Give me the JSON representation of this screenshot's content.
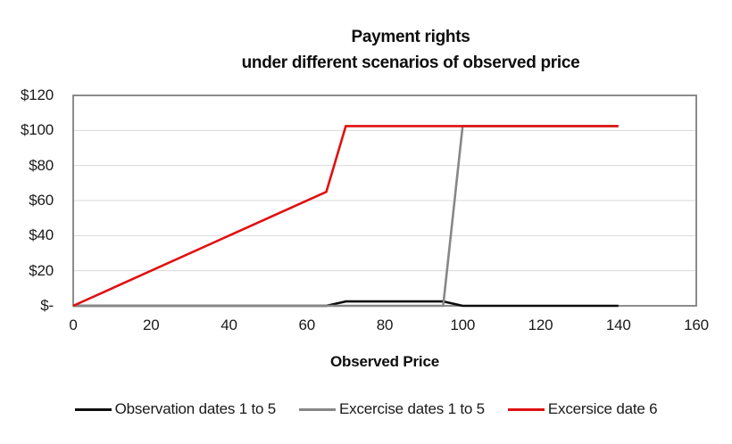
{
  "title": {
    "line1": "Payment rights",
    "line2": "under different scenarios of observed price"
  },
  "axes": {
    "x_label": "Observed Price",
    "y_ticks": [
      "$120",
      "$100",
      "$80",
      "$60",
      "$40",
      "$20",
      "$-"
    ],
    "x_ticks": [
      "0",
      "20",
      "40",
      "60",
      "80",
      "100",
      "120",
      "140",
      "160"
    ]
  },
  "legend": [
    {
      "label": "Observation dates 1 to 5",
      "color": "#0d0d0d"
    },
    {
      "label": "Excercise dates 1 to 5",
      "color": "#878787"
    },
    {
      "label": "Excersice date 6",
      "color": "#e01010"
    }
  ],
  "colors": {
    "plot_border": "#808080",
    "gridline": "#d9d9d9",
    "series_black": "#0d0d0d",
    "series_gray": "#878787",
    "series_red": "#e01010"
  },
  "chart_data": {
    "type": "line",
    "title": "Payment rights under different scenarios of observed price",
    "xlabel": "Observed Price",
    "ylabel": "",
    "xlim": [
      0,
      160
    ],
    "ylim": [
      0,
      120
    ],
    "x_tick_step": 20,
    "y_tick_step": 20,
    "grid": "horizontal",
    "legend_position": "bottom",
    "series": [
      {
        "name": "Observation dates 1 to 5",
        "color": "#0d0d0d",
        "points": [
          [
            0,
            0
          ],
          [
            65,
            0
          ],
          [
            70,
            2.5
          ],
          [
            95,
            2.5
          ],
          [
            100,
            0
          ],
          [
            140,
            0
          ]
        ]
      },
      {
        "name": "Excercise dates 1 to 5",
        "color": "#878787",
        "points": [
          [
            0,
            0
          ],
          [
            95,
            0
          ],
          [
            100,
            102.5
          ],
          [
            140,
            102.5
          ]
        ]
      },
      {
        "name": "Excersice date 6",
        "color": "#e01010",
        "points": [
          [
            0,
            0
          ],
          [
            65,
            65
          ],
          [
            70,
            102.5
          ],
          [
            140,
            102.5
          ]
        ]
      }
    ]
  }
}
